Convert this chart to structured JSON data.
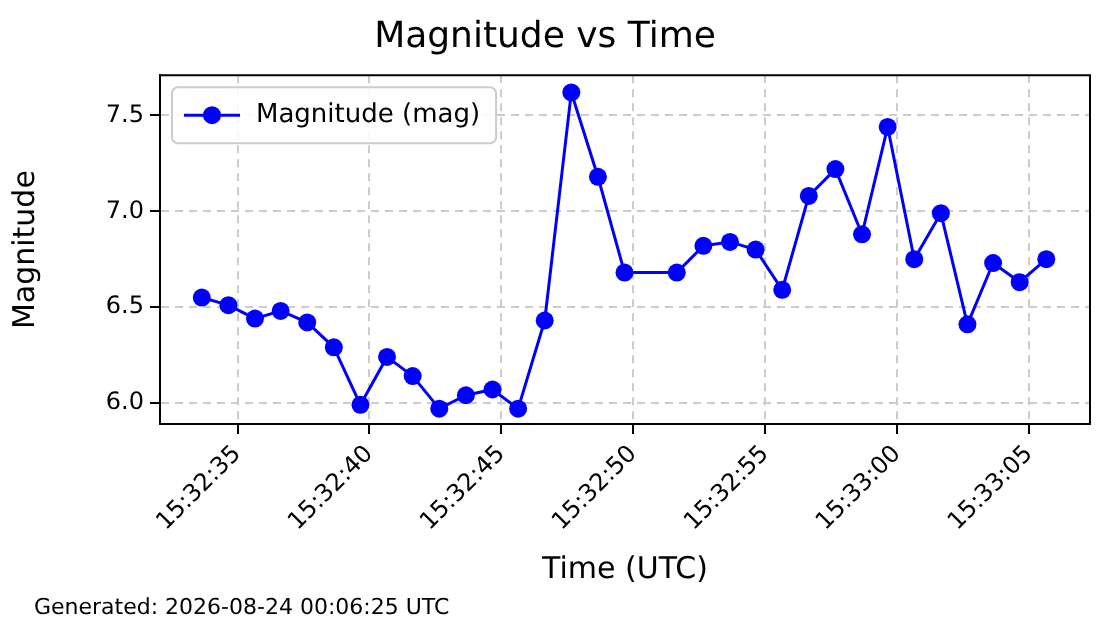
{
  "chart_data": {
    "type": "line",
    "title": "Magnitude vs Time",
    "xlabel": "Time (UTC)",
    "ylabel": "Magnitude",
    "annotations": [
      "Generated: 2026-08-24 00:06:25 UTC"
    ],
    "x": [
      15.54268,
      15.54296,
      15.54324,
      15.54351,
      15.54379,
      15.54407,
      15.54435,
      15.54463,
      15.5449,
      15.54518,
      15.54546,
      15.54574,
      15.54601,
      15.54629,
      15.54657,
      15.54685,
      15.54713,
      15.54768,
      15.54796,
      15.54824,
      15.54851,
      15.54879,
      15.54907,
      15.54935,
      15.54963,
      15.5499,
      15.55018,
      15.55046,
      15.55074,
      15.55101,
      15.55129,
      15.55157
    ],
    "series": [
      {
        "name": "Magnitude (mag)",
        "color": "#0000ff",
        "values": [
          6.55,
          6.51,
          6.44,
          6.48,
          6.42,
          6.29,
          5.99,
          6.24,
          6.14,
          5.97,
          6.04,
          6.07,
          5.97,
          6.43,
          7.62,
          7.18,
          6.68,
          6.68,
          6.82,
          6.84,
          6.8,
          6.59,
          7.08,
          7.22,
          6.88,
          7.44,
          6.75,
          6.99,
          6.41,
          6.73,
          6.63,
          6.75
        ]
      }
    ],
    "xlim": [
      15.54224,
      15.55203
    ],
    "xticks": [
      {
        "value": 15.543056,
        "label": "15:32:35"
      },
      {
        "value": 15.544444,
        "label": "15:32:40"
      },
      {
        "value": 15.545833,
        "label": "15:32:45"
      },
      {
        "value": 15.547222,
        "label": "15:32:50"
      },
      {
        "value": 15.548611,
        "label": "15:32:55"
      },
      {
        "value": 15.55,
        "label": "15:33:00"
      },
      {
        "value": 15.551389,
        "label": "15:33:05"
      }
    ],
    "ylim": [
      5.89,
      7.71
    ],
    "yticks": [
      {
        "value": 6,
        "label": "6.0"
      },
      {
        "value": 6.5,
        "label": "6.5"
      },
      {
        "value": 7,
        "label": "7.0"
      },
      {
        "value": 7.5,
        "label": "7.5"
      }
    ],
    "grid": true,
    "legend": "top left",
    "marker": "circle",
    "line_style": "solid"
  }
}
